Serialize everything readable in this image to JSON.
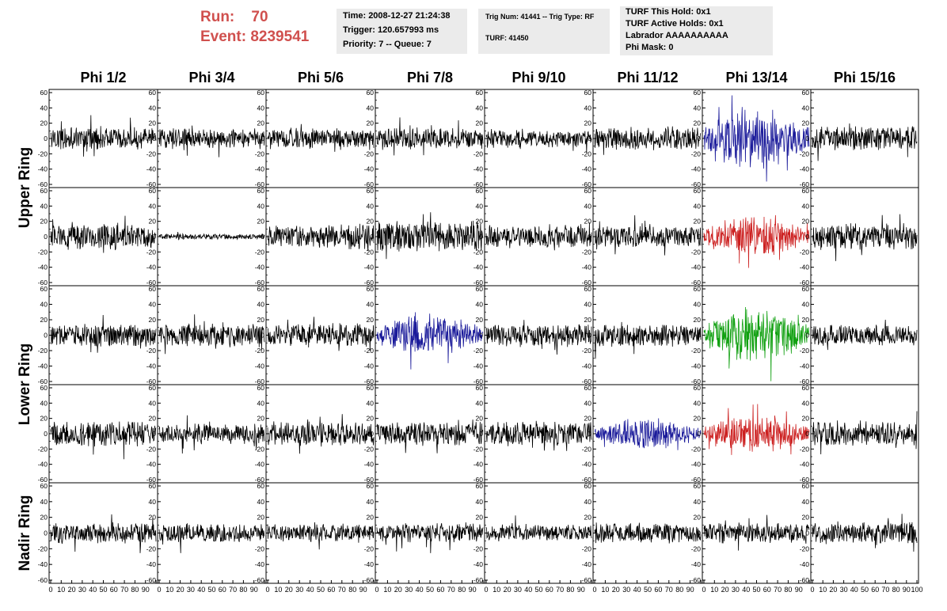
{
  "header": {
    "run_label": "Run:",
    "run_value": "70",
    "event_label": "Event:",
    "event_value": "8239541"
  },
  "info_box_time": {
    "time": "Time: 2008-12-27 21:24:38",
    "trigger": "Trigger: 120.657993 ms",
    "priority": "Priority: 7 -- Queue: 7"
  },
  "info_box_trig": {
    "trig": "Trig Num: 41441 -- Trig Type: RF",
    "turf": "TURF: 41450"
  },
  "info_box_turf": {
    "this_hold": "TURF This Hold: 0x1",
    "active_holds": "TURF Active Holds: 0x1",
    "labrador": "Labrador AAAAAAAAAA",
    "phi_mask": "Phi Mask: 0"
  },
  "colors": {
    "header_red": "#d0504e",
    "info_box_bg": "#ebebeb",
    "trace_default": "#000000",
    "trace_blue": "#1a1a9a",
    "trace_red": "#cc1f1f",
    "trace_green": "#10a010"
  },
  "chart_data": {
    "type": "line",
    "column_titles": [
      "Phi 1/2",
      "Phi 3/4",
      "Phi 5/6",
      "Phi 7/8",
      "Phi 9/10",
      "Phi 11/12",
      "Phi 13/14",
      "Phi 15/16"
    ],
    "row_groups": [
      {
        "label": "Upper Ring",
        "rows": [
          0,
          1
        ]
      },
      {
        "label": "Lower Ring",
        "rows": [
          2,
          3
        ]
      },
      {
        "label": "Nadir Ring",
        "rows": [
          4
        ]
      }
    ],
    "xlim": [
      0,
      100
    ],
    "ylim": [
      -60,
      60
    ],
    "x_tick_labels": [
      "0",
      "10",
      "20",
      "30",
      "40",
      "50",
      "60",
      "70",
      "80",
      "90",
      "100"
    ],
    "y_tick_labels": [
      "60",
      "40",
      "20",
      "0",
      "-20",
      "-40",
      "-60"
    ],
    "panel_amplitudes": [
      [
        12,
        11,
        11,
        12,
        10,
        12,
        22,
        13
      ],
      [
        14,
        3,
        13,
        17,
        12,
        12,
        15,
        14
      ],
      [
        12,
        12,
        13,
        15,
        12,
        12,
        20,
        11
      ],
      [
        14,
        11,
        13,
        13,
        13,
        12,
        14,
        13
      ],
      [
        11,
        10,
        9,
        10,
        9,
        11,
        11,
        12
      ]
    ],
    "highlighted_panels": [
      {
        "row": 0,
        "col": 6,
        "color": "blue"
      },
      {
        "row": 1,
        "col": 6,
        "color": "red"
      },
      {
        "row": 2,
        "col": 3,
        "color": "blue"
      },
      {
        "row": 2,
        "col": 6,
        "color": "green"
      },
      {
        "row": 3,
        "col": 5,
        "color": "blue"
      },
      {
        "row": 3,
        "col": 6,
        "color": "red"
      }
    ]
  }
}
